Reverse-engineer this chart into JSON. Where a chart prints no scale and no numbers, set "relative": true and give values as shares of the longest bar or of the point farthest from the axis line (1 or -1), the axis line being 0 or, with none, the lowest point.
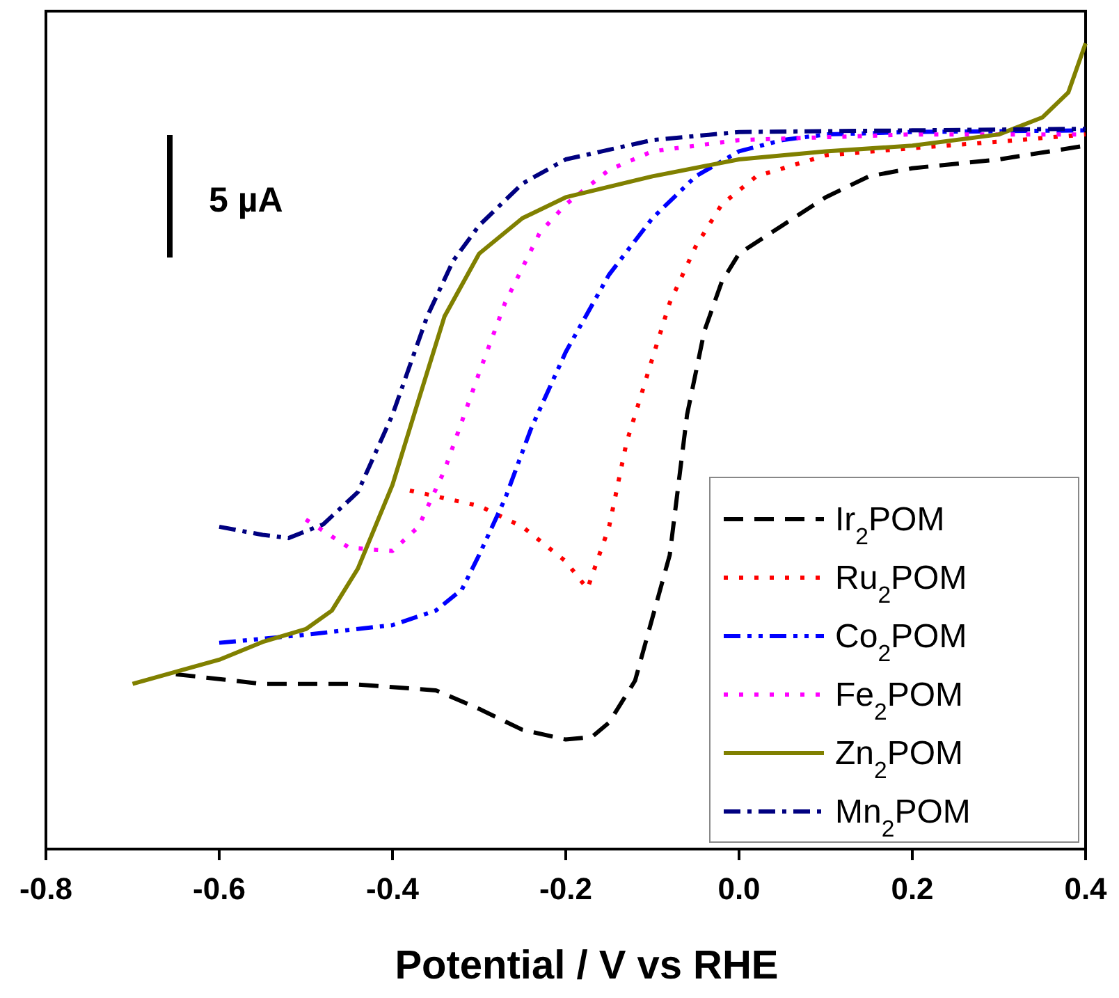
{
  "chart_data": {
    "type": "line",
    "relative": true,
    "xlabel": "Potential / V vs RHE",
    "xlim": [
      -0.8,
      0.4
    ],
    "xticks": [
      {
        "value": -0.8,
        "label": "-0.8"
      },
      {
        "value": -0.6,
        "label": "-0.6"
      },
      {
        "value": -0.4,
        "label": "-0.4"
      },
      {
        "value": -0.2,
        "label": "-0.2"
      },
      {
        "value": 0,
        "label": "0.0"
      },
      {
        "value": 0.2,
        "label": "0.2"
      },
      {
        "value": 0.4,
        "label": "0.4"
      }
    ],
    "tick_labels": "x",
    "legend": "bottom right",
    "grid": false,
    "annotations": [
      "5 µA"
    ],
    "series": [
      {
        "name": "Ir$_{2}$POM",
        "color": "#000000",
        "line_style": "dashed",
        "x": [
          -0.65,
          -0.55,
          -0.45,
          -0.35,
          -0.3,
          -0.25,
          -0.2,
          -0.17,
          -0.15,
          -0.12,
          -0.08,
          -0.06,
          -0.04,
          -0.02,
          0,
          0.05,
          0.1,
          0.15,
          0.2,
          0.3,
          0.4
        ],
        "values": [
          0.217,
          0.205,
          0.205,
          0.197,
          0.174,
          0.148,
          0.136,
          0.139,
          0.157,
          0.209,
          0.365,
          0.539,
          0.643,
          0.704,
          0.739,
          0.774,
          0.809,
          0.835,
          0.845,
          0.856,
          0.873
        ]
      },
      {
        "name": "Ru$_{2}$POM",
        "color": "#ff0000",
        "line_style": "dotted",
        "x": [
          -0.38,
          -0.3,
          -0.25,
          -0.2,
          -0.175,
          -0.15,
          -0.13,
          -0.1,
          -0.08,
          -0.05,
          -0.02,
          0.02,
          0.1,
          0.2,
          0.3,
          0.4
        ],
        "values": [
          0.445,
          0.426,
          0.4,
          0.357,
          0.323,
          0.4,
          0.504,
          0.609,
          0.678,
          0.748,
          0.8,
          0.835,
          0.861,
          0.87,
          0.878,
          0.887
        ]
      },
      {
        "name": "Co$_{2}$POM",
        "color": "#0000ff",
        "line_style": "dashdotdot",
        "x": [
          -0.6,
          -0.5,
          -0.4,
          -0.35,
          -0.32,
          -0.3,
          -0.27,
          -0.24,
          -0.2,
          -0.15,
          -0.1,
          -0.05,
          0,
          0.05,
          0.1,
          0.2,
          0.4
        ],
        "values": [
          0.256,
          0.266,
          0.278,
          0.296,
          0.322,
          0.365,
          0.435,
          0.522,
          0.617,
          0.713,
          0.783,
          0.835,
          0.866,
          0.88,
          0.887,
          0.89,
          0.892
        ]
      },
      {
        "name": "Fe$_{2}$POM",
        "color": "#ff00ff",
        "line_style": "dotted",
        "x": [
          -0.5,
          -0.45,
          -0.4,
          -0.37,
          -0.34,
          -0.3,
          -0.27,
          -0.23,
          -0.2,
          -0.15,
          -0.1,
          0,
          0.2,
          0.4
        ],
        "values": [
          0.409,
          0.374,
          0.37,
          0.4,
          0.47,
          0.591,
          0.678,
          0.765,
          0.8,
          0.843,
          0.866,
          0.88,
          0.887,
          0.887
        ]
      },
      {
        "name": "Zn$_{2}$POM",
        "color": "#808000",
        "line_style": "solid",
        "x": [
          -0.7,
          -0.6,
          -0.55,
          -0.5,
          -0.47,
          -0.44,
          -0.4,
          -0.37,
          -0.34,
          -0.3,
          -0.25,
          -0.2,
          -0.1,
          0,
          0.1,
          0.2,
          0.3,
          0.35,
          0.38,
          0.4
        ],
        "values": [
          0.205,
          0.235,
          0.257,
          0.273,
          0.296,
          0.348,
          0.452,
          0.557,
          0.661,
          0.739,
          0.783,
          0.809,
          0.835,
          0.856,
          0.866,
          0.873,
          0.887,
          0.908,
          0.939,
          1
        ]
      },
      {
        "name": "Mn$_{2}$POM",
        "color": "#000080",
        "line_style": "dashdot",
        "x": [
          -0.6,
          -0.55,
          -0.52,
          -0.48,
          -0.44,
          -0.4,
          -0.36,
          -0.33,
          -0.3,
          -0.25,
          -0.2,
          -0.1,
          0,
          0.2,
          0.4
        ],
        "values": [
          0.4,
          0.39,
          0.386,
          0.403,
          0.443,
          0.539,
          0.661,
          0.73,
          0.774,
          0.826,
          0.856,
          0.88,
          0.89,
          0.892,
          0.894
        ]
      }
    ]
  }
}
